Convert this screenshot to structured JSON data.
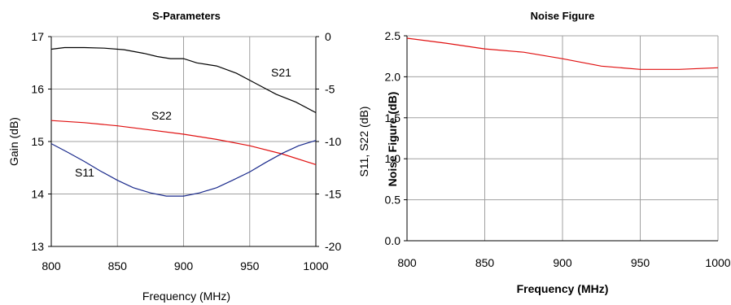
{
  "chart_data": [
    {
      "type": "line",
      "title": "S-Parameters",
      "xlabel": "Frequency (MHz)",
      "ylabel": "Gain (dB)",
      "y2label": "S11, S22 (dB)",
      "xlim": [
        800,
        1000
      ],
      "ylim": [
        13,
        17
      ],
      "y2lim": [
        -20,
        0
      ],
      "xticks": [
        "800",
        "850",
        "900",
        "950",
        "1000"
      ],
      "yticks": [
        "13",
        "14",
        "15",
        "16",
        "17"
      ],
      "y2ticks": [
        "-20",
        "-15",
        "-10",
        "-5",
        "0"
      ],
      "grid": true,
      "series": [
        {
          "name": "S21",
          "axis": "left",
          "color": "#000000",
          "x": [
            800,
            810,
            825,
            840,
            855,
            870,
            880,
            890,
            900,
            910,
            925,
            940,
            955,
            970,
            985,
            1000
          ],
          "y": [
            16.76,
            16.79,
            16.79,
            16.78,
            16.75,
            16.68,
            16.62,
            16.58,
            16.58,
            16.5,
            16.44,
            16.3,
            16.1,
            15.9,
            15.75,
            15.55
          ]
        },
        {
          "name": "S22",
          "axis": "right",
          "color": "#e01010",
          "x": [
            800,
            825,
            850,
            875,
            900,
            925,
            950,
            975,
            1000
          ],
          "y": [
            -8.0,
            -8.2,
            -8.5,
            -8.9,
            -9.3,
            -9.8,
            -10.4,
            -11.2,
            -12.2
          ]
        },
        {
          "name": "S11",
          "axis": "right",
          "color": "#1a2a8c",
          "x": [
            800,
            812,
            825,
            837,
            850,
            862,
            875,
            887,
            900,
            912,
            925,
            937,
            950,
            962,
            975,
            987,
            1000
          ],
          "y": [
            -10.2,
            -11.0,
            -11.9,
            -12.8,
            -13.7,
            -14.4,
            -14.9,
            -15.2,
            -15.2,
            -14.9,
            -14.4,
            -13.7,
            -12.9,
            -12.0,
            -11.1,
            -10.4,
            -9.9
          ]
        }
      ]
    },
    {
      "type": "line",
      "title": "Noise Figure",
      "xlabel": "Frequency (MHz)",
      "ylabel": "Noise Figure (dB)",
      "xlim": [
        800,
        1000
      ],
      "ylim": [
        0,
        2.5
      ],
      "xticks": [
        "800",
        "850",
        "900",
        "950",
        "1000"
      ],
      "yticks": [
        "0.0",
        "0.5",
        "1.0",
        "1.5",
        "2.0",
        "2.5"
      ],
      "grid": true,
      "series": [
        {
          "color": "#e01010",
          "x": [
            800,
            825,
            850,
            875,
            900,
            925,
            950,
            975,
            1000
          ],
          "y": [
            2.47,
            2.41,
            2.34,
            2.3,
            2.22,
            2.13,
            2.09,
            2.09,
            2.11
          ]
        }
      ]
    }
  ]
}
